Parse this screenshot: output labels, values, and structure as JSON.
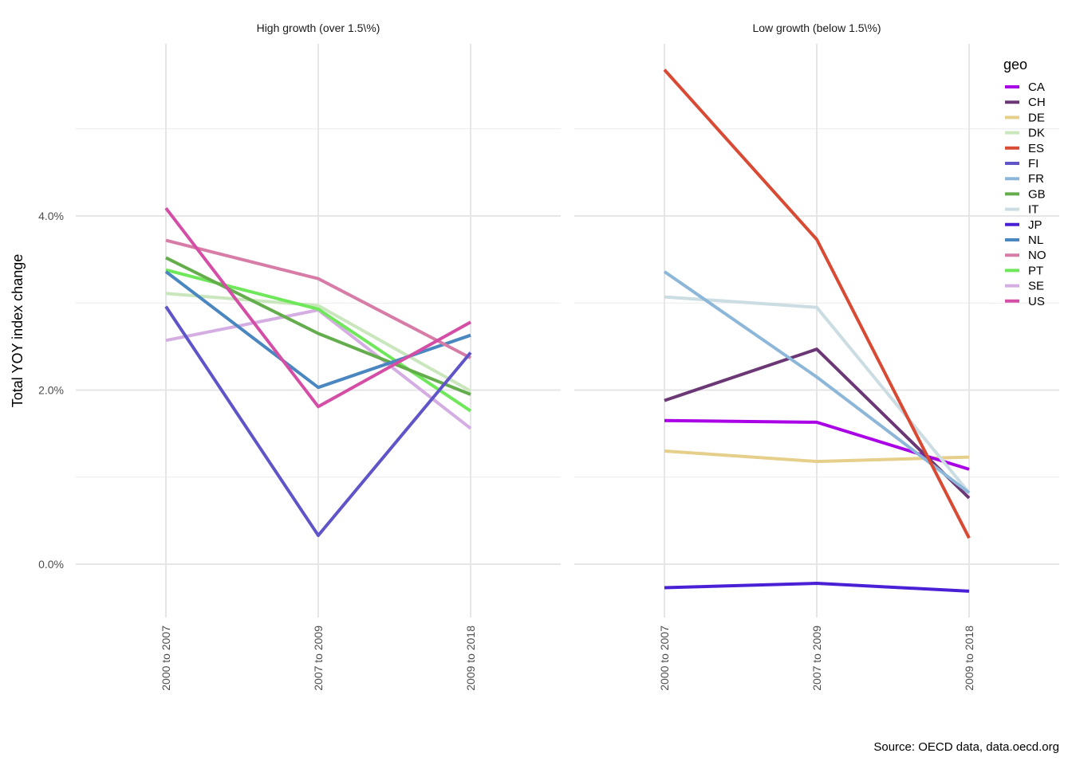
{
  "chart_data": {
    "type": "line",
    "ylabel": "Total YOY index change",
    "caption": "Source: OECD data, data.oecd.org",
    "y_ticks": [
      "0.0%",
      "2.0%",
      "4.0%"
    ],
    "y_tick_values": [
      0,
      2,
      4
    ],
    "ylim": [
      -0.6,
      5.8
    ],
    "categories": [
      "2000 to 2007",
      "2007 to 2009",
      "2009 to 2018"
    ],
    "grid": true,
    "legend": {
      "title": "geo",
      "placement": "right",
      "entries": [
        {
          "name": "CA",
          "color": "#a900e6"
        },
        {
          "name": "CH",
          "color": "#6b3775"
        },
        {
          "name": "DE",
          "color": "#e5cf8a"
        },
        {
          "name": "DK",
          "color": "#c9e6bd"
        },
        {
          "name": "ES",
          "color": "#d94a34"
        },
        {
          "name": "FI",
          "color": "#6054c9"
        },
        {
          "name": "FR",
          "color": "#8db7d9"
        },
        {
          "name": "GB",
          "color": "#64ad4c"
        },
        {
          "name": "IT",
          "color": "#cbdde3"
        },
        {
          "name": "JP",
          "color": "#4a20d6"
        },
        {
          "name": "NL",
          "color": "#4a86bf"
        },
        {
          "name": "NO",
          "color": "#d67ca6"
        },
        {
          "name": "PT",
          "color": "#6ee85a"
        },
        {
          "name": "SE",
          "color": "#d4aee3"
        },
        {
          "name": "US",
          "color": "#d44ea6"
        }
      ]
    },
    "panels": [
      {
        "title": "High growth (over 1.5\\%)",
        "series": [
          {
            "name": "DK",
            "values": [
              3.11,
              2.97,
              1.99
            ]
          },
          {
            "name": "SE",
            "values": [
              2.57,
              2.92,
              1.56
            ]
          },
          {
            "name": "PT",
            "values": [
              3.38,
              2.93,
              1.76
            ]
          },
          {
            "name": "GB",
            "values": [
              3.52,
              2.65,
              1.95
            ]
          },
          {
            "name": "NL",
            "values": [
              3.36,
              2.03,
              2.63
            ]
          },
          {
            "name": "NO",
            "values": [
              3.72,
              3.28,
              2.37
            ]
          },
          {
            "name": "FI",
            "values": [
              2.96,
              0.33,
              2.43
            ]
          },
          {
            "name": "US",
            "values": [
              4.09,
              1.81,
              2.78
            ]
          }
        ]
      },
      {
        "title": "Low growth (below 1.5\\%)",
        "series": [
          {
            "name": "DE",
            "values": [
              1.3,
              1.18,
              1.23
            ]
          },
          {
            "name": "CA",
            "values": [
              1.65,
              1.63,
              1.09
            ]
          },
          {
            "name": "CH",
            "values": [
              1.88,
              2.47,
              0.76
            ]
          },
          {
            "name": "IT",
            "values": [
              3.07,
              2.95,
              0.82
            ]
          },
          {
            "name": "FR",
            "values": [
              3.36,
              2.15,
              0.82
            ]
          },
          {
            "name": "JP",
            "values": [
              -0.27,
              -0.22,
              -0.31
            ]
          },
          {
            "name": "ES",
            "values": [
              5.68,
              3.73,
              0.3
            ]
          }
        ]
      }
    ]
  }
}
